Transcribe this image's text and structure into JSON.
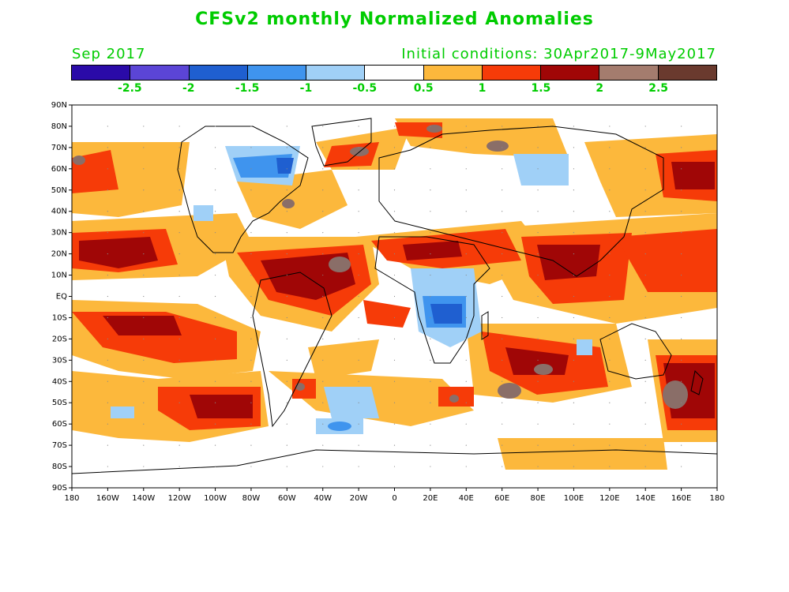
{
  "title": "CFSv2 monthly Normalized Anomalies",
  "valid_month": "Sep 2017",
  "initial_conditions": "Initial conditions: 30Apr2017-9May2017",
  "colorbar": {
    "colors": [
      "#2a0aa8",
      "#5b45d6",
      "#1f5fd0",
      "#3f94ee",
      "#a0d0f7",
      "#ffffff",
      "#fcb83c",
      "#f63b08",
      "#a00606",
      "#a47c6e",
      "#6a3a2e"
    ],
    "labels": [
      "-2.5",
      "-2",
      "-1.5",
      "-1",
      "-0.5",
      "0.5",
      "1",
      "1.5",
      "2",
      "2.5"
    ]
  },
  "lat_labels": [
    "90N",
    "80N",
    "70N",
    "60N",
    "50N",
    "40N",
    "30N",
    "20N",
    "10N",
    "EQ",
    "10S",
    "20S",
    "30S",
    "40S",
    "50S",
    "60S",
    "70S",
    "80S",
    "90S"
  ],
  "lon_labels": [
    "180",
    "160W",
    "140W",
    "120W",
    "100W",
    "80W",
    "60W",
    "40W",
    "20W",
    "0",
    "20E",
    "40E",
    "60E",
    "80E",
    "100E",
    "120E",
    "140E",
    "160E",
    "180"
  ]
}
